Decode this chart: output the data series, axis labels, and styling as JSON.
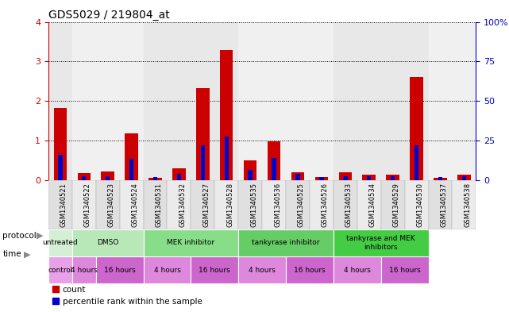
{
  "title": "GDS5029 / 219804_at",
  "samples": [
    "GSM1340521",
    "GSM1340522",
    "GSM1340523",
    "GSM1340524",
    "GSM1340531",
    "GSM1340532",
    "GSM1340527",
    "GSM1340528",
    "GSM1340535",
    "GSM1340536",
    "GSM1340525",
    "GSM1340526",
    "GSM1340533",
    "GSM1340534",
    "GSM1340529",
    "GSM1340530",
    "GSM1340537",
    "GSM1340538"
  ],
  "red_values": [
    1.82,
    0.18,
    0.21,
    1.17,
    0.05,
    0.3,
    2.32,
    3.28,
    0.5,
    0.97,
    0.19,
    0.07,
    0.19,
    0.13,
    0.13,
    2.6,
    0.05,
    0.13
  ],
  "blue_values": [
    0.63,
    0.1,
    0.1,
    0.53,
    0.07,
    0.15,
    0.88,
    1.1,
    0.25,
    0.55,
    0.15,
    0.07,
    0.1,
    0.1,
    0.1,
    0.88,
    0.07,
    0.1
  ],
  "ylim_left": [
    0,
    4
  ],
  "ylim_right": [
    0,
    100
  ],
  "yticks_left": [
    0,
    1,
    2,
    3,
    4
  ],
  "yticks_right": [
    0,
    25,
    50,
    75,
    100
  ],
  "ytick_labels_right": [
    "0",
    "25",
    "50",
    "75",
    "100%"
  ],
  "red_color": "#cc0000",
  "blue_color": "#0000cc",
  "bar_width": 0.55,
  "blue_bar_width": 0.18,
  "group_boundaries": [
    0,
    1,
    4,
    8,
    12,
    16,
    18
  ],
  "group_bg_colors": [
    "#e8e8e8",
    "#f0f0f0",
    "#e8e8e8",
    "#f0f0f0",
    "#e8e8e8",
    "#f0f0f0"
  ],
  "protocol_segments": [
    {
      "label": "untreated",
      "start": 0,
      "end": 1,
      "color": "#d4f0d4"
    },
    {
      "label": "DMSO",
      "start": 1,
      "end": 4,
      "color": "#b8e8b8"
    },
    {
      "label": "MEK inhibitor",
      "start": 4,
      "end": 8,
      "color": "#88dd88"
    },
    {
      "label": "tankyrase inhibitor",
      "start": 8,
      "end": 12,
      "color": "#66cc66"
    },
    {
      "label": "tankyrase and MEK\ninhibitors",
      "start": 12,
      "end": 16,
      "color": "#44cc44"
    },
    {
      "label": "",
      "start": 16,
      "end": 18,
      "color": "#44cc44"
    }
  ],
  "time_segments": [
    {
      "label": "control",
      "start": 0,
      "end": 1,
      "color": "#e8a0e8"
    },
    {
      "label": "4 hours",
      "start": 1,
      "end": 2,
      "color": "#dd88dd"
    },
    {
      "label": "16 hours",
      "start": 2,
      "end": 4,
      "color": "#cc66cc"
    },
    {
      "label": "4 hours",
      "start": 4,
      "end": 6,
      "color": "#dd88dd"
    },
    {
      "label": "16 hours",
      "start": 6,
      "end": 8,
      "color": "#cc66cc"
    },
    {
      "label": "4 hours",
      "start": 8,
      "end": 10,
      "color": "#dd88dd"
    },
    {
      "label": "16 hours",
      "start": 10,
      "end": 12,
      "color": "#cc66cc"
    },
    {
      "label": "4 hours",
      "start": 12,
      "end": 14,
      "color": "#dd88dd"
    },
    {
      "label": "16 hours",
      "start": 14,
      "end": 16,
      "color": "#cc66cc"
    },
    {
      "label": "",
      "start": 16,
      "end": 18,
      "color": "#dd88dd"
    }
  ],
  "legend_items": [
    {
      "label": "count",
      "color": "#cc0000",
      "marker": "s"
    },
    {
      "label": "percentile rank within the sample",
      "color": "#0000cc",
      "marker": "s"
    }
  ]
}
